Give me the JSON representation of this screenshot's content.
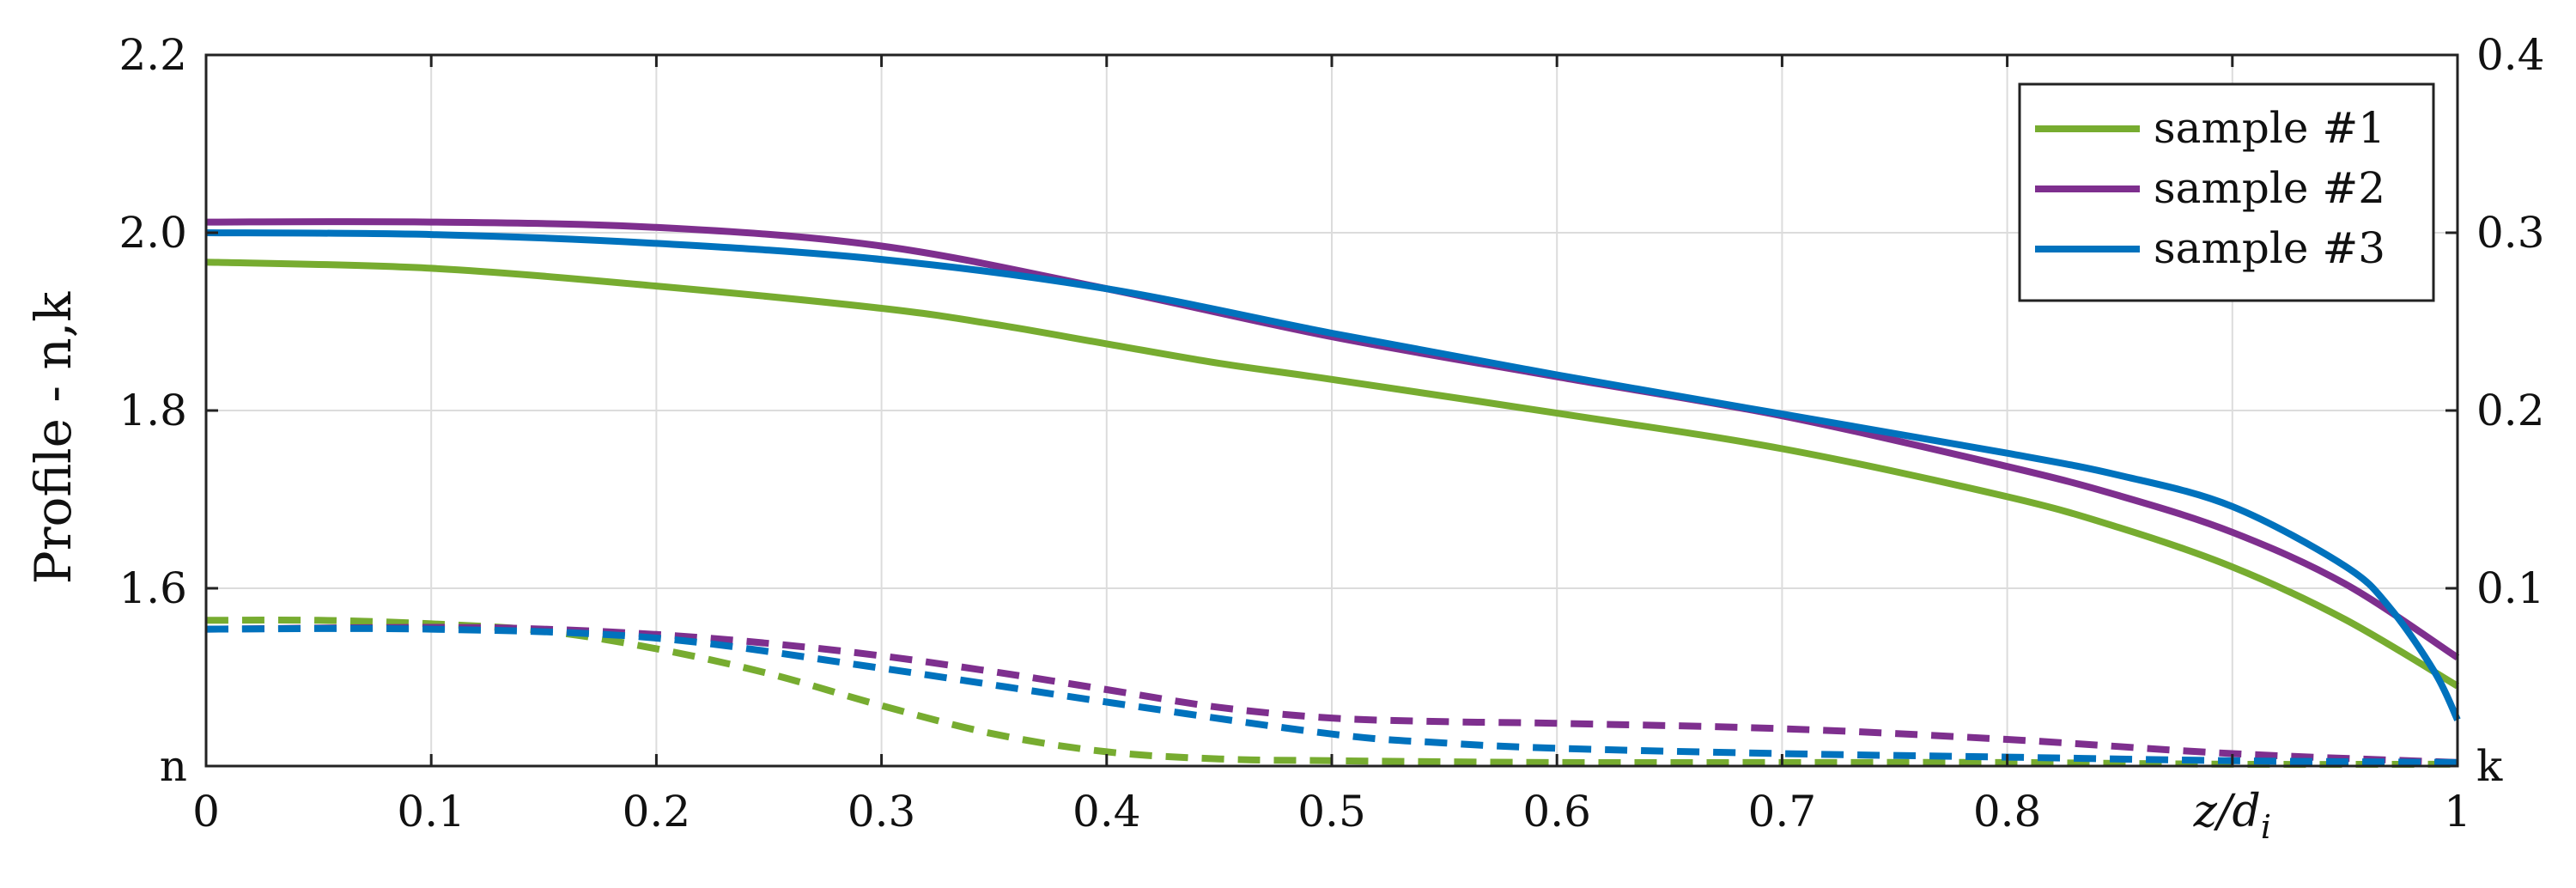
{
  "chart_data": {
    "type": "line",
    "ylabel": "Profile - n,k",
    "xlabel": "z/d_i",
    "xlabel_parts": {
      "main": "z/d",
      "sub": "i"
    },
    "xlim": [
      0,
      1
    ],
    "ylim_left": [
      1.4,
      2.2
    ],
    "ylim_right": [
      0.0,
      0.4
    ],
    "x_ticks": [
      "0",
      "0.1",
      "0.2",
      "0.3",
      "0.4",
      "0.5",
      "0.6",
      "0.7",
      "0.8",
      "z/d_i",
      "1"
    ],
    "x_tick_values": [
      0,
      0.1,
      0.2,
      0.3,
      0.4,
      0.5,
      0.6,
      0.7,
      0.8,
      0.9,
      1.0
    ],
    "y_ticks_left": [
      "n",
      "1.6",
      "1.8",
      "2.0",
      "2.2"
    ],
    "y_tick_values_left": [
      1.4,
      1.6,
      1.8,
      2.0,
      2.2
    ],
    "y_ticks_right": [
      "k",
      "0.1",
      "0.2",
      "0.3",
      "0.4"
    ],
    "y_tick_values_right": [
      0.0,
      0.1,
      0.2,
      0.3,
      0.4
    ],
    "grid": true,
    "legend_position": "top-right",
    "series": [
      {
        "name": "sample #1",
        "color": "#77AC30",
        "n": {
          "x": [
            0,
            0.1,
            0.2,
            0.3,
            0.35,
            0.4,
            0.45,
            0.5,
            0.6,
            0.7,
            0.8,
            0.85,
            0.9,
            0.95,
            1.0
          ],
          "y": [
            1.967,
            1.96,
            1.94,
            1.915,
            1.897,
            1.875,
            1.853,
            1.835,
            1.797,
            1.757,
            1.703,
            1.668,
            1.624,
            1.565,
            1.49
          ]
        },
        "k": {
          "x": [
            0,
            0.05,
            0.1,
            0.15,
            0.2,
            0.25,
            0.3,
            0.35,
            0.4,
            0.45,
            0.5,
            0.6,
            0.7,
            0.8,
            0.9,
            1.0
          ],
          "y": [
            0.082,
            0.082,
            0.08,
            0.076,
            0.066,
            0.052,
            0.034,
            0.018,
            0.008,
            0.004,
            0.003,
            0.002,
            0.002,
            0.002,
            0.001,
            0.001
          ]
        }
      },
      {
        "name": "sample #2",
        "color": "#7E2F8E",
        "n": {
          "x": [
            0,
            0.1,
            0.2,
            0.3,
            0.4,
            0.5,
            0.6,
            0.7,
            0.8,
            0.85,
            0.9,
            0.95,
            1.0
          ],
          "y": [
            2.012,
            2.012,
            2.006,
            1.985,
            1.937,
            1.883,
            1.838,
            1.794,
            1.737,
            1.704,
            1.663,
            1.605,
            1.522
          ]
        },
        "k": {
          "x": [
            0,
            0.1,
            0.15,
            0.2,
            0.25,
            0.3,
            0.35,
            0.4,
            0.45,
            0.5,
            0.55,
            0.6,
            0.7,
            0.8,
            0.9,
            1.0
          ],
          "y": [
            0.077,
            0.078,
            0.077,
            0.074,
            0.069,
            0.062,
            0.053,
            0.043,
            0.033,
            0.027,
            0.025,
            0.024,
            0.021,
            0.015,
            0.007,
            0.002
          ]
        }
      },
      {
        "name": "sample #3",
        "color": "#0072BD",
        "n": {
          "x": [
            0,
            0.1,
            0.2,
            0.3,
            0.4,
            0.5,
            0.6,
            0.7,
            0.8,
            0.85,
            0.9,
            0.95,
            0.97,
            0.99,
            1.0
          ],
          "y": [
            2.0,
            1.998,
            1.988,
            1.97,
            1.937,
            1.887,
            1.84,
            1.796,
            1.752,
            1.727,
            1.692,
            1.625,
            1.578,
            1.505,
            1.452
          ]
        },
        "k": {
          "x": [
            0,
            0.1,
            0.2,
            0.3,
            0.4,
            0.5,
            0.55,
            0.6,
            0.7,
            0.8,
            0.9,
            1.0
          ],
          "y": [
            0.077,
            0.077,
            0.072,
            0.055,
            0.036,
            0.018,
            0.013,
            0.01,
            0.007,
            0.005,
            0.003,
            0.002
          ]
        }
      }
    ]
  }
}
